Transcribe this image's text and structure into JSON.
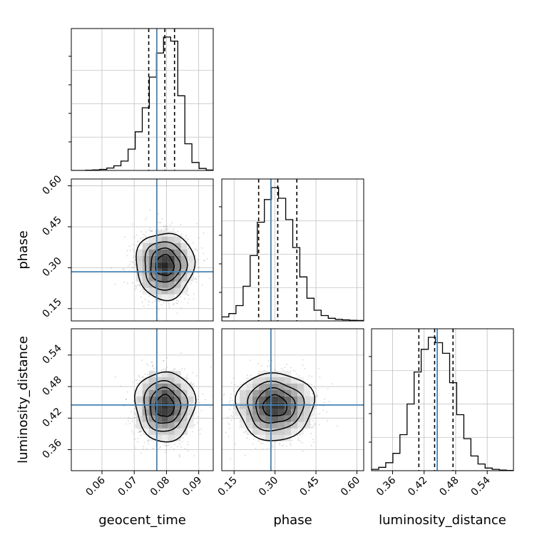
{
  "chart_data": {
    "type": "corner",
    "parameters": [
      "geocent_time",
      "phase",
      "luminosity_distance"
    ],
    "truths": {
      "geocent_time": 0.077,
      "phase": 0.285,
      "luminosity_distance": 0.445
    },
    "quantiles": {
      "geocent_time": [
        0.0745,
        0.0795,
        0.0825
      ],
      "phase": [
        0.24,
        0.31,
        0.38
      ],
      "luminosity_distance": [
        0.41,
        0.44,
        0.475
      ]
    },
    "ranges": {
      "geocent_time": [
        0.0505,
        0.0945
      ],
      "phase": [
        0.105,
        0.625
      ],
      "luminosity_distance": [
        0.32,
        0.59
      ]
    },
    "ticks": {
      "geocent_time": [
        0.06,
        0.07,
        0.08,
        0.09
      ],
      "phase": [
        0.15,
        0.3,
        0.45,
        0.6
      ],
      "luminosity_distance": [
        0.36,
        0.42,
        0.48,
        0.54
      ]
    },
    "tick_labels": {
      "geocent_time": [
        "0.06",
        "0.07",
        "0.08",
        "0.09"
      ],
      "phase": [
        "0.15",
        "0.30",
        "0.45",
        "0.60"
      ],
      "luminosity_distance": [
        "0.36",
        "0.42",
        "0.48",
        "0.54"
      ]
    },
    "histograms": {
      "geocent_time": {
        "bin_start": 0.0505,
        "bin_width": 0.0022,
        "counts": [
          0.0,
          0.0,
          0.2,
          0.4,
          0.8,
          1.8,
          3.5,
          7.0,
          16.0,
          29.0,
          47.0,
          70.0,
          88.0,
          100.0,
          97.0,
          56.0,
          20.0,
          6.0,
          1.5,
          0.3
        ]
      },
      "phase": {
        "bin_start": 0.105,
        "bin_width": 0.026,
        "counts": [
          3.0,
          5.5,
          11.5,
          26.0,
          49.0,
          74.0,
          91.0,
          100.0,
          92.0,
          76.0,
          55.0,
          33.0,
          17.0,
          8.0,
          4.0,
          2.0,
          1.2,
          0.8,
          0.5,
          0.3
        ]
      },
      "luminosity_distance": {
        "bin_start": 0.32,
        "bin_width": 0.0135,
        "counts": [
          1.0,
          2.5,
          6.0,
          13.0,
          27.0,
          50.0,
          74.0,
          91.0,
          100.0,
          96.0,
          88.0,
          66.0,
          42.0,
          24.0,
          11.0,
          5.0,
          2.0,
          1.0,
          0.5,
          0.2
        ]
      }
    },
    "density_2d": [
      {
        "x": "geocent_time",
        "y": "phase",
        "center": [
          0.0795,
          0.308
        ],
        "sigma": [
          0.0042,
          0.057
        ],
        "levels": [
          0.2,
          0.45,
          0.7,
          0.9
        ]
      },
      {
        "x": "geocent_time",
        "y": "luminosity_distance",
        "center": [
          0.0795,
          0.443
        ],
        "sigma": [
          0.0043,
          0.031
        ],
        "levels": [
          0.2,
          0.45,
          0.7,
          0.9
        ]
      },
      {
        "x": "phase",
        "y": "luminosity_distance",
        "center": [
          0.3,
          0.443
        ],
        "sigma": [
          0.066,
          0.03
        ],
        "levels": [
          0.2,
          0.45,
          0.7,
          0.9
        ]
      }
    ],
    "grid": true,
    "colors": {
      "truth": "#4682b4",
      "hist": "#000000",
      "quantile": "#000000",
      "grid": "#c0c0c0",
      "scatter": "#8a8a8a"
    }
  }
}
